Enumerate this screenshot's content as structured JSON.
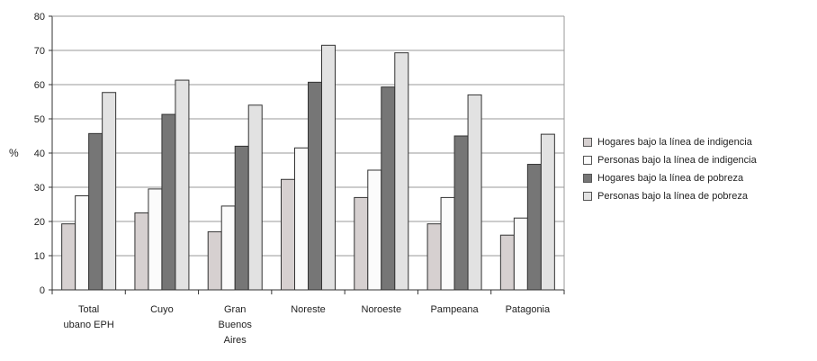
{
  "chart_data": {
    "type": "bar",
    "title": "",
    "xlabel": "",
    "ylabel": "%",
    "ylim": [
      0,
      80
    ],
    "yticks": [
      0,
      10,
      20,
      30,
      40,
      50,
      60,
      70,
      80
    ],
    "grid": true,
    "legend_position": "right",
    "categories": [
      [
        "Total",
        "ubano EPH"
      ],
      [
        "Cuyo"
      ],
      [
        "Gran",
        "Buenos",
        "Aires"
      ],
      [
        "Noreste"
      ],
      [
        "Noroeste"
      ],
      [
        "Pampeana"
      ],
      [
        "Patagonia"
      ]
    ],
    "series": [
      {
        "name": "Hogares bajo la línea de indigencia",
        "color": "#d6d0d0",
        "values": [
          19.3,
          22.5,
          17.0,
          32.3,
          27.0,
          19.3,
          16.0
        ]
      },
      {
        "name": "Personas bajo la línea de indigencia",
        "color": "#fbfbfb",
        "values": [
          27.5,
          29.5,
          24.5,
          41.5,
          35.0,
          27.0,
          21.0
        ]
      },
      {
        "name": "Hogares bajo la línea de pobreza",
        "color": "#767676",
        "values": [
          45.7,
          51.3,
          42.0,
          60.7,
          59.3,
          45.0,
          36.7
        ]
      },
      {
        "name": "Personas bajo la línea de pobreza",
        "color": "#e2e2e2",
        "values": [
          57.7,
          61.3,
          54.0,
          71.5,
          69.3,
          57.0,
          45.5
        ]
      }
    ]
  }
}
